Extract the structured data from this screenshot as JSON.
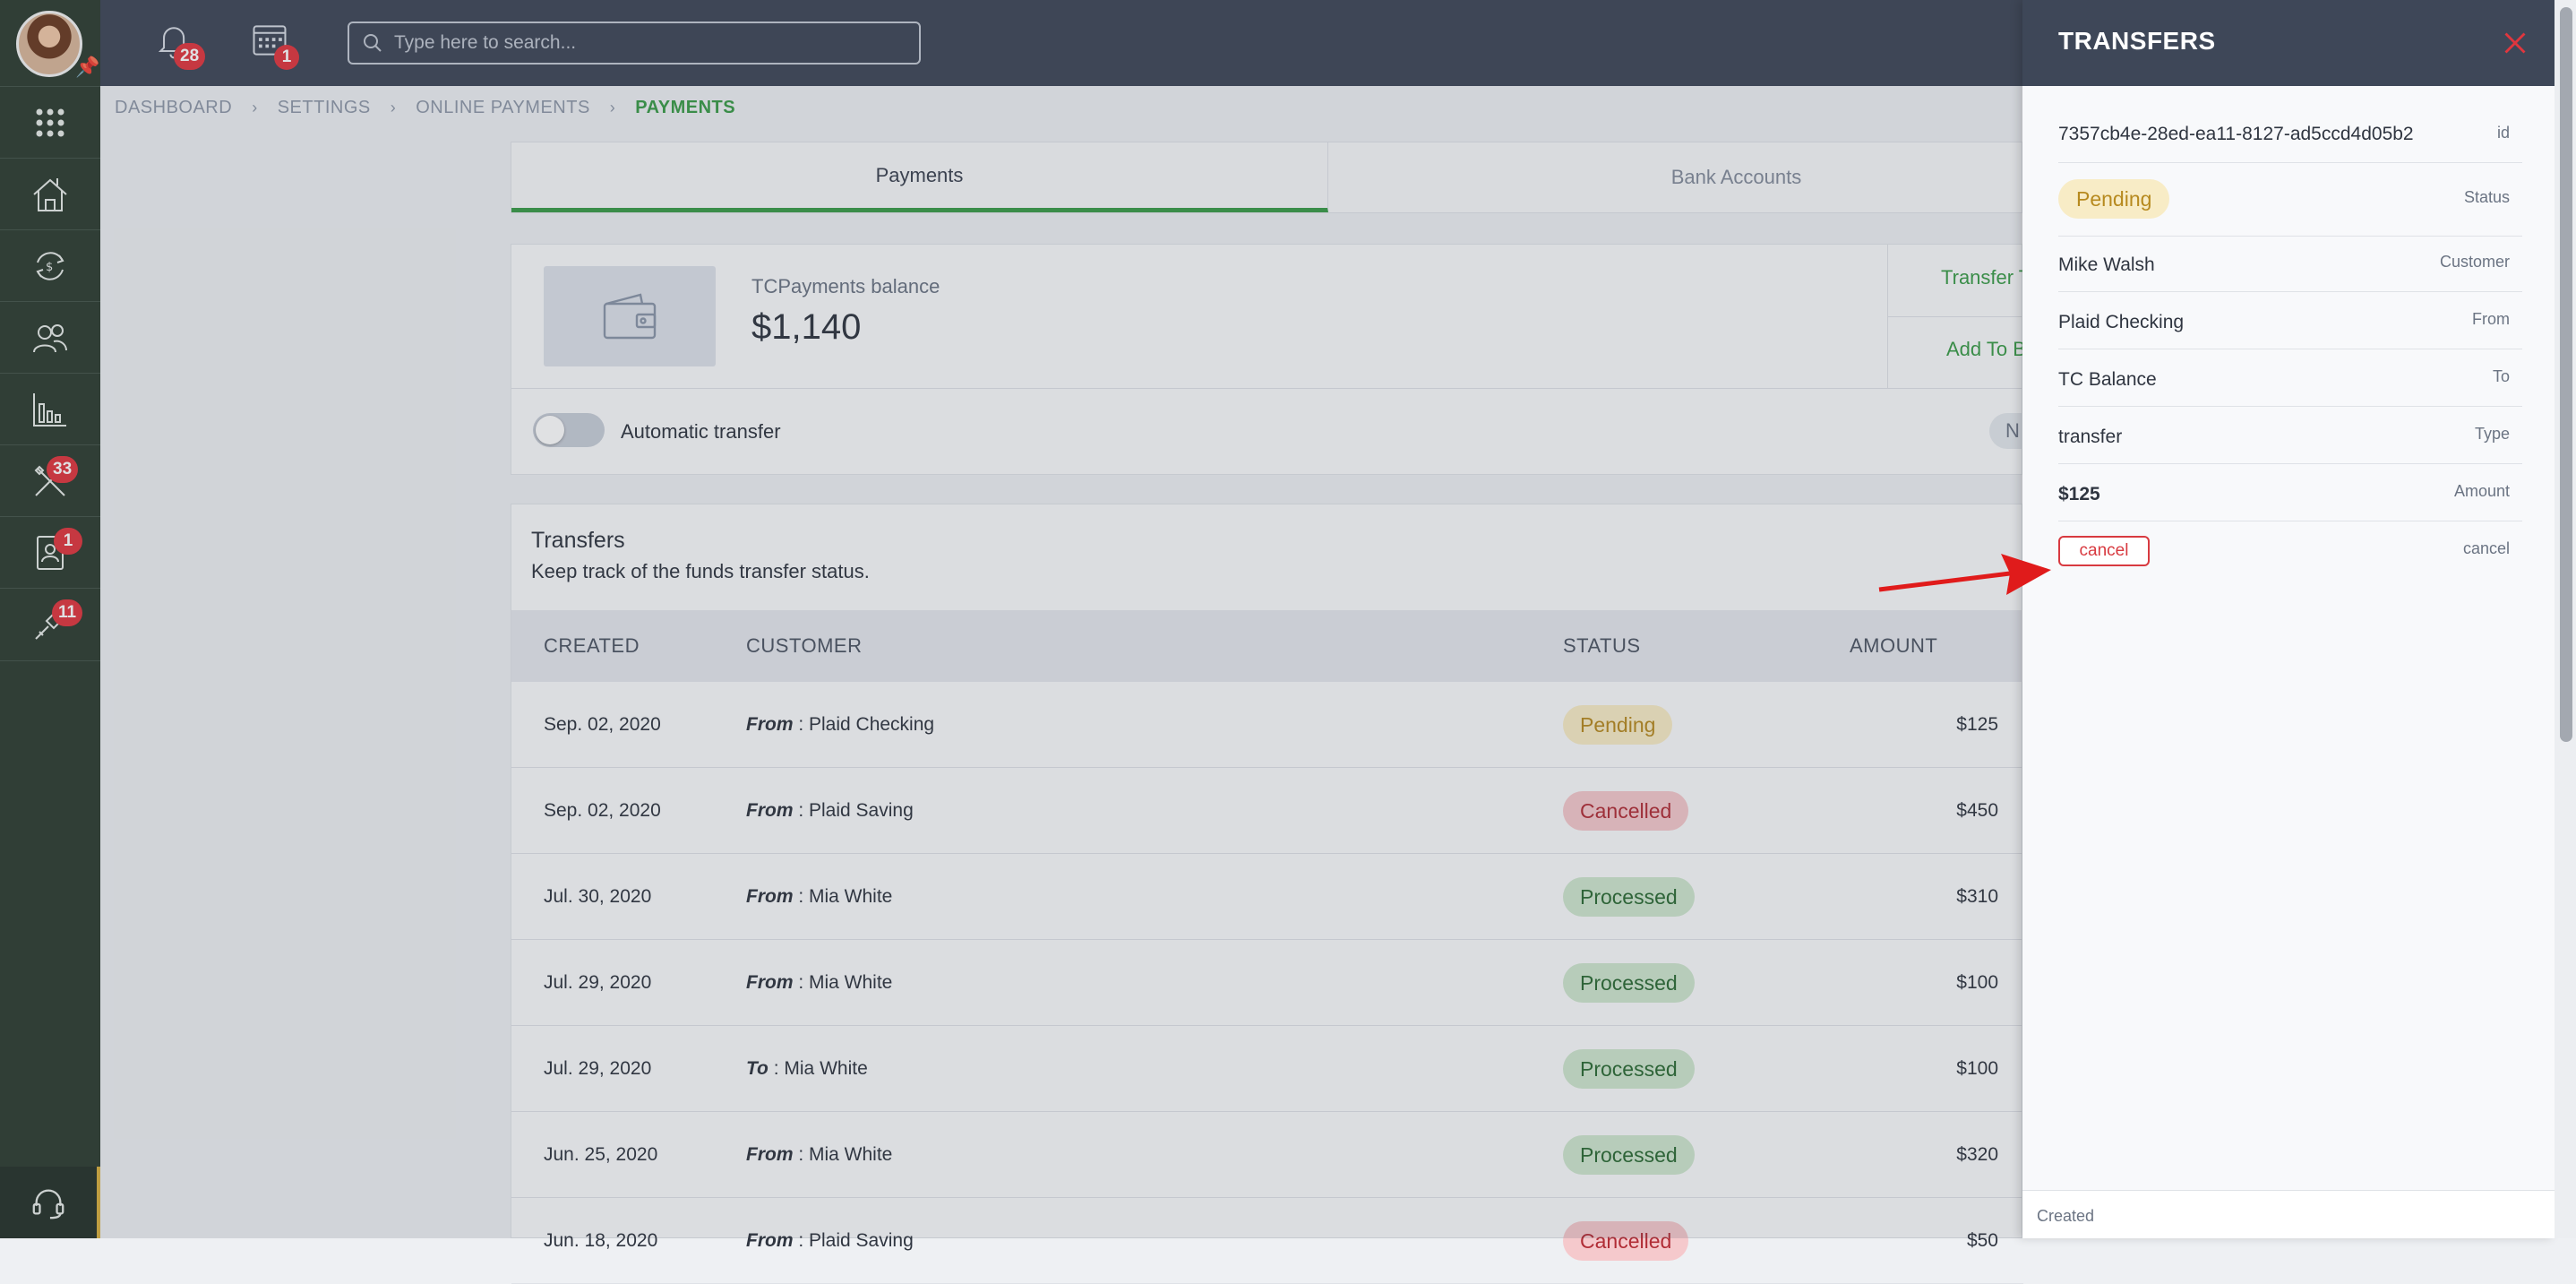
{
  "rail": {
    "notification_badges": {
      "tools": "33",
      "contacts": "1",
      "gear": "11"
    }
  },
  "topbar": {
    "notifications_count": "28",
    "calendar_count": "1",
    "search_placeholder": "Type here to search..."
  },
  "breadcrumb": [
    "DASHBOARD",
    "SETTINGS",
    "ONLINE PAYMENTS",
    "PAYMENTS"
  ],
  "tabs": [
    {
      "label": "Payments",
      "active": true
    },
    {
      "label": "Bank Accounts",
      "active": false
    }
  ],
  "balance": {
    "label": "TCPayments balance",
    "value": "$1,140",
    "transfer_link": "Transfer T",
    "add_link": "Add To B",
    "auto_transfer_label": "Automatic transfer",
    "next_label": "N"
  },
  "transfers": {
    "title": "Transfers",
    "subtitle": "Keep track of the funds transfer status.",
    "columns": {
      "created": "CREATED",
      "customer": "CUSTOMER",
      "status": "STATUS",
      "amount": "AMOUNT"
    },
    "rows": [
      {
        "created": "Sep. 02, 2020",
        "dir": "From",
        "party": " : Plaid Checking",
        "status": "Pending",
        "amount": "$125"
      },
      {
        "created": "Sep. 02, 2020",
        "dir": "From",
        "party": " : Plaid Saving",
        "status": "Cancelled",
        "amount": "$450"
      },
      {
        "created": "Jul. 30, 2020",
        "dir": "From",
        "party": " : Mia White",
        "status": "Processed",
        "amount": "$310"
      },
      {
        "created": "Jul. 29, 2020",
        "dir": "From",
        "party": " : Mia White",
        "status": "Processed",
        "amount": "$100"
      },
      {
        "created": "Jul. 29, 2020",
        "dir": "To",
        "party": " : Mia White",
        "status": "Processed",
        "amount": "$100"
      },
      {
        "created": "Jun. 25, 2020",
        "dir": "From",
        "party": " : Mia White",
        "status": "Processed",
        "amount": "$320"
      },
      {
        "created": "Jun. 18, 2020",
        "dir": "From",
        "party": " : Plaid Saving",
        "status": "Cancelled",
        "amount": "$50"
      }
    ]
  },
  "panel": {
    "title": "TRANSFERS",
    "fields": {
      "id_value": "7357cb4e-28ed-ea11-8127-ad5ccd4d05b2",
      "id_label": "id",
      "status_value": "Pending",
      "status_label": "Status",
      "customer_value": "Mike Walsh",
      "customer_label": "Customer",
      "from_value": "Plaid Checking",
      "from_label": "From",
      "to_value": "TC Balance",
      "to_label": "To",
      "type_value": "transfer",
      "type_label": "Type",
      "amount_value": "$125",
      "amount_label": "Amount",
      "cancel_button": "cancel",
      "cancel_label": "cancel"
    },
    "footer": "Created"
  },
  "colors": {
    "accent_green": "#3a9b48",
    "danger_red": "#d83a40",
    "topbar": "#3e4758",
    "rail": "#2e3d32"
  }
}
